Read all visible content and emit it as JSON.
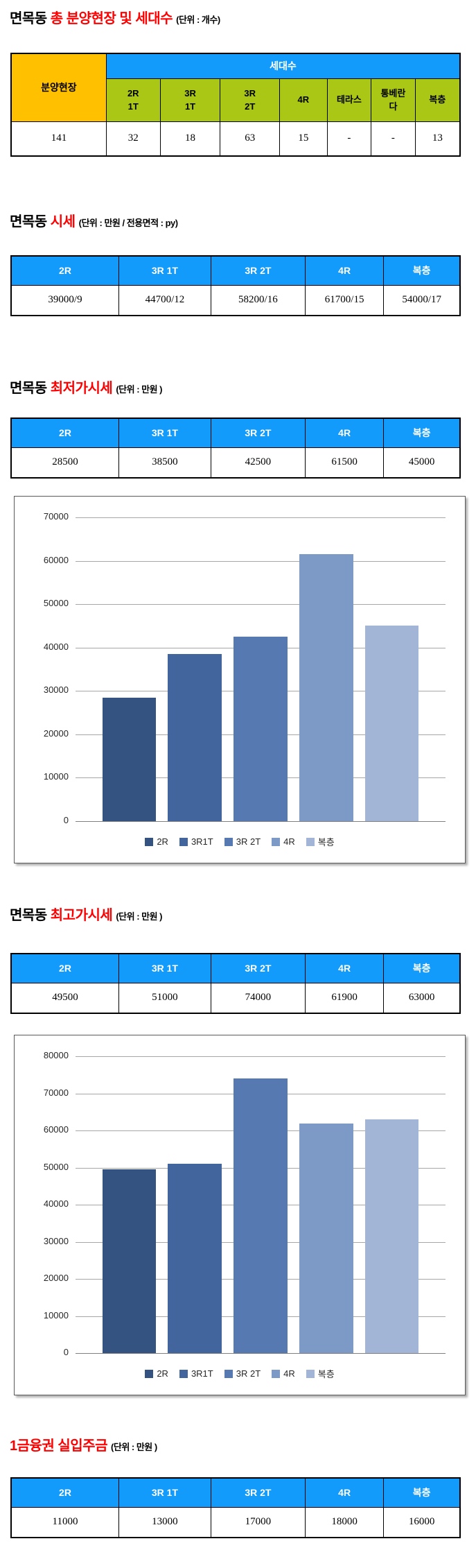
{
  "colors": {
    "header_blue": "#129BFB",
    "header_green": "#A9C714",
    "header_orange": "#FFC000",
    "title_red": "#FF0000",
    "gridline": "#A6A6A6",
    "axis_line": "#7F7F7F"
  },
  "sections": {
    "units": {
      "title_prefix": "면목동",
      "title_highlight": "총 분양현장 및 세대수",
      "title_unit": "(단위 : 개수)"
    },
    "price": {
      "title_prefix": "면목동",
      "title_highlight": "시세",
      "title_unit": "(단위 : 만원 / 전용면적 : py)"
    },
    "min_price": {
      "title_prefix": "면목동",
      "title_highlight": "최저가시세",
      "title_unit": "(단위 : 만원 )"
    },
    "max_price": {
      "title_prefix": "면목동",
      "title_highlight": "최고가시세",
      "title_unit": "(단위 : 만원 )"
    },
    "loan": {
      "title_prefix": "",
      "title_highlight": "1금융권 실입주금",
      "title_unit": "(단위 : 만원 )"
    }
  },
  "tables": {
    "units": {
      "row_header": "분양현장",
      "group_header": "세대수",
      "columns": [
        "2R\n1T",
        "3R\n1T",
        "3R\n2T",
        "4R",
        "테라스",
        "통베란\n다",
        "복층"
      ],
      "values": [
        "141",
        "32",
        "18",
        "63",
        "15",
        "-",
        "-",
        "13"
      ]
    },
    "price": {
      "columns": [
        "2R",
        "3R 1T",
        "3R 2T",
        "4R",
        "복층"
      ],
      "values": [
        "39000/9",
        "44700/12",
        "58200/16",
        "61700/15",
        "54000/17"
      ]
    },
    "min_price": {
      "columns": [
        "2R",
        "3R 1T",
        "3R 2T",
        "4R",
        "복층"
      ],
      "values": [
        "28500",
        "38500",
        "42500",
        "61500",
        "45000"
      ]
    },
    "max_price": {
      "columns": [
        "2R",
        "3R 1T",
        "3R 2T",
        "4R",
        "복층"
      ],
      "values": [
        "49500",
        "51000",
        "74000",
        "61900",
        "63000"
      ]
    },
    "loan": {
      "columns": [
        "2R",
        "3R 1T",
        "3R 2T",
        "4R",
        "복층"
      ],
      "values": [
        "11000",
        "13000",
        "17000",
        "18000",
        "16000"
      ]
    }
  },
  "chart_data": [
    {
      "type": "bar",
      "title": "면목동 최저가시세",
      "categories": [
        "2R",
        "3R1T",
        "3R 2T",
        "4R",
        "복층"
      ],
      "values": [
        28500,
        38500,
        42500,
        61500,
        45000
      ],
      "xlabel": "",
      "ylabel": "",
      "ylim": [
        0,
        70000
      ],
      "ytick_step": 10000,
      "grid": true,
      "legend_position": "bottom",
      "bar_colors": [
        "#355381",
        "#41659C",
        "#5679B1",
        "#7D99C5",
        "#A3B5D7"
      ]
    },
    {
      "type": "bar",
      "title": "면목동 최고가시세",
      "categories": [
        "2R",
        "3R1T",
        "3R 2T",
        "4R",
        "복층"
      ],
      "values": [
        49500,
        51000,
        74000,
        61900,
        63000
      ],
      "xlabel": "",
      "ylabel": "",
      "ylim": [
        0,
        80000
      ],
      "ytick_step": 10000,
      "grid": true,
      "legend_position": "bottom",
      "bar_colors": [
        "#355381",
        "#41659C",
        "#5679B1",
        "#7D99C5",
        "#A3B5D7"
      ]
    }
  ]
}
